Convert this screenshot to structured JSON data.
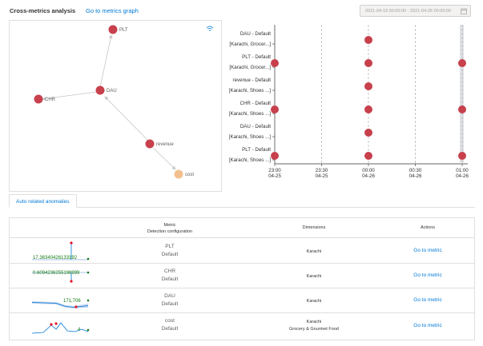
{
  "header": {
    "title": "Cross-metrics analysis",
    "graph_link": "Go to metrics graph",
    "date_range": "2021-04-19 00:00:00 - 2021-04-26 00:00:00"
  },
  "graph": {
    "nodes": [
      {
        "id": "PLT",
        "label": "PLT",
        "color": "#c7404c"
      },
      {
        "id": "DAU",
        "label": "DAU",
        "color": "#c7404c"
      },
      {
        "id": "CHR",
        "label": "CHR",
        "color": "#c7404c"
      },
      {
        "id": "revenue",
        "label": "revenue",
        "color": "#c7404c"
      },
      {
        "id": "cost",
        "label": "cost",
        "color": "#f2c08f"
      }
    ]
  },
  "chart_data": {
    "type": "scatter",
    "x_ticks": [
      {
        "time": "23:00",
        "date": "04-25"
      },
      {
        "time": "23:30",
        "date": "04-25"
      },
      {
        "time": "00:00",
        "date": "04-26"
      },
      {
        "time": "00:30",
        "date": "04-26"
      },
      {
        "time": "01:00",
        "date": "04-26"
      }
    ],
    "rows": [
      {
        "line1": "DAU - Default",
        "line2": "[Karachi, Grocer...]",
        "points": [
          "00:00"
        ]
      },
      {
        "line1": "PLT - Default",
        "line2": "[Karachi, Grocer...]",
        "points": [
          "23:00",
          "00:00",
          "01:00"
        ]
      },
      {
        "line1": "revenue - Default",
        "line2": "[Karachi, Shoes ...]",
        "points": [
          "00:00"
        ]
      },
      {
        "line1": "CHR - Default",
        "line2": "[Karachi, Shoes ...]",
        "points": [
          "23:00",
          "00:00",
          "01:00"
        ]
      },
      {
        "line1": "DAU - Default",
        "line2": "[Karachi, Shoes ...]",
        "points": [
          "00:00"
        ]
      },
      {
        "line1": "PLT - Default",
        "line2": "[Karachi, Shoes ...]",
        "points": [
          "23:00",
          "00:00",
          "01:00"
        ]
      }
    ],
    "point_color": "#c7404c"
  },
  "tabs": [
    {
      "label": "Auto related anomalies"
    }
  ],
  "table": {
    "col_metric_1": "Metric",
    "col_metric_2": "Detection configuration",
    "col_dimensions": "Dimensions",
    "col_actions": "Actions",
    "rows": [
      {
        "metric": "PLT",
        "config": "Default",
        "dim1": "Karachi",
        "dim2": "",
        "action": "Go to metric",
        "spark_value": "17.36340426133192"
      },
      {
        "metric": "CHR",
        "config": "Default",
        "dim1": "Karachi",
        "dim2": "",
        "action": "Go to metric",
        "spark_value": "0.6094236255198999"
      },
      {
        "metric": "DAU",
        "config": "Default",
        "dim1": "Karachi",
        "dim2": "",
        "action": "Go to metric",
        "spark_value": "171,706"
      },
      {
        "metric": "cost",
        "config": "Default",
        "dim1": "Karachi",
        "dim2": "Grocery & Gourmet Food",
        "action": "Go to metric",
        "spark_value": "4"
      }
    ]
  }
}
